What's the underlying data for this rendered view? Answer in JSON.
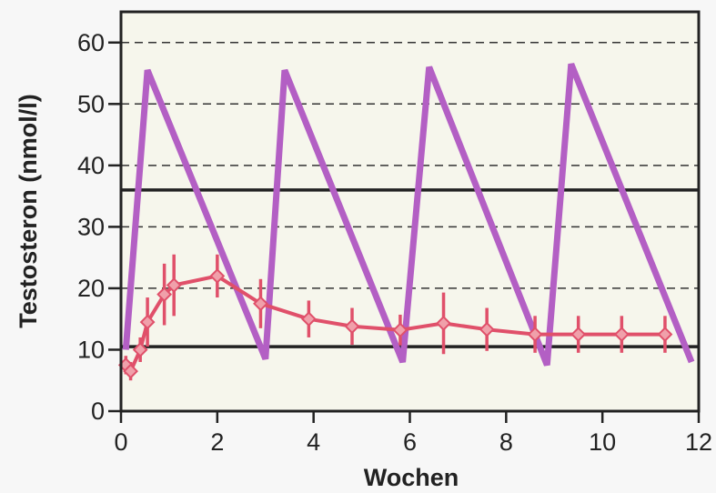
{
  "chart_data": {
    "type": "line",
    "title": "",
    "xlabel": "Wochen",
    "ylabel": "Testosteron (nmol/l)",
    "xlim": [
      0,
      12
    ],
    "ylim": [
      0,
      65
    ],
    "x_ticks": [
      "0",
      "2",
      "4",
      "6",
      "8",
      "10",
      "12"
    ],
    "y_ticks": [
      "0",
      "10",
      "20",
      "30",
      "40",
      "50",
      "60"
    ],
    "grid": "dashed horizontal at 20, 30, 40, 50, 60",
    "reference_lines": [
      {
        "y": 36,
        "style": "solid"
      },
      {
        "y": 10.5,
        "style": "solid"
      }
    ],
    "series": [
      {
        "color": "#b35fc4",
        "style": "thick line",
        "points": [
          [
            0.1,
            10
          ],
          [
            0.55,
            55.5
          ],
          [
            3.0,
            8.5
          ],
          [
            3.4,
            55.5
          ],
          [
            5.85,
            8
          ],
          [
            6.4,
            56
          ],
          [
            8.85,
            7.5
          ],
          [
            9.35,
            56.5
          ],
          [
            11.85,
            8
          ]
        ]
      },
      {
        "color": "#e0506a",
        "style": "line with diamond markers and error bars",
        "points": [
          {
            "x": 0.1,
            "y": 7.5,
            "err": 1.5
          },
          {
            "x": 0.2,
            "y": 6.5,
            "err": 1.5
          },
          {
            "x": 0.4,
            "y": 10,
            "err": 2
          },
          {
            "x": 0.55,
            "y": 14.5,
            "err": 4
          },
          {
            "x": 0.9,
            "y": 19,
            "err": 5
          },
          {
            "x": 1.1,
            "y": 20.5,
            "err": 5
          },
          {
            "x": 2.0,
            "y": 22,
            "err": 3.5
          },
          {
            "x": 2.9,
            "y": 17.5,
            "err": 4
          },
          {
            "x": 3.9,
            "y": 15,
            "err": 3
          },
          {
            "x": 4.8,
            "y": 13.8,
            "err": 3
          },
          {
            "x": 5.8,
            "y": 13.2,
            "err": 2.5
          },
          {
            "x": 6.7,
            "y": 14.3,
            "err": 5
          },
          {
            "x": 7.6,
            "y": 13.3,
            "err": 3.5
          },
          {
            "x": 8.6,
            "y": 12.5,
            "err": 3
          },
          {
            "x": 9.5,
            "y": 12.5,
            "err": 3
          },
          {
            "x": 10.4,
            "y": 12.5,
            "err": 3
          },
          {
            "x": 11.3,
            "y": 12.5,
            "err": 3
          }
        ]
      }
    ]
  }
}
